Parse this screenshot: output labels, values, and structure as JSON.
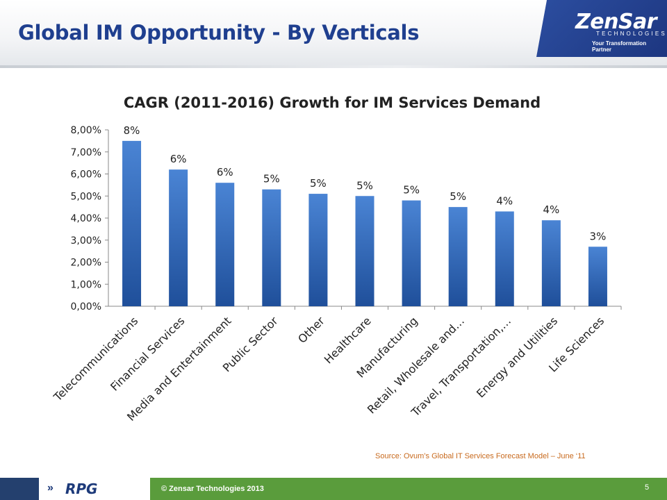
{
  "slide": {
    "title": "Global IM Opportunity - By Verticals",
    "source": "Source: Ovum’s Global IT Services Forecast Model – June ‘11",
    "copyright": "© Zensar Technologies 2013",
    "page_number": "5"
  },
  "logo": {
    "name": "ZenSar",
    "subtitle": "TECHNOLOGIES",
    "tagline": "Your Transformation Partner"
  },
  "footer": {
    "brand": "RPG",
    "brand_icon": "double-chevron-icon"
  },
  "colors": {
    "bar_top": "#4a84d4",
    "bar_bottom": "#1f4f9a",
    "title": "#1f3f8f",
    "footer_green": "#5a9c3c",
    "footer_navy": "#24406e",
    "source": "#c86a1e"
  },
  "chart_data": {
    "type": "bar",
    "title": "CAGR (2011-2016) Growth for IM Services Demand",
    "categories": [
      "Telecommunications",
      "Financial Services",
      "Media and Entertainment",
      "Public Sector",
      "Other",
      "Healthcare",
      "Manufacturing",
      "Retail, Wholesale and…",
      "Travel, Transportation,…",
      "Energy and Utilities",
      "Life Sciences"
    ],
    "values": [
      7.5,
      6.2,
      5.6,
      5.3,
      5.1,
      5.0,
      4.8,
      4.5,
      4.3,
      3.9,
      2.7
    ],
    "data_labels": [
      "8%",
      "6%",
      "6%",
      "5%",
      "5%",
      "5%",
      "5%",
      "5%",
      "4%",
      "4%",
      "3%"
    ],
    "y_ticks": [
      "0,00%",
      "1,00%",
      "2,00%",
      "3,00%",
      "4,00%",
      "5,00%",
      "6,00%",
      "7,00%",
      "8,00%"
    ],
    "ylim": [
      0,
      8
    ],
    "grid": false,
    "legend": "none"
  }
}
